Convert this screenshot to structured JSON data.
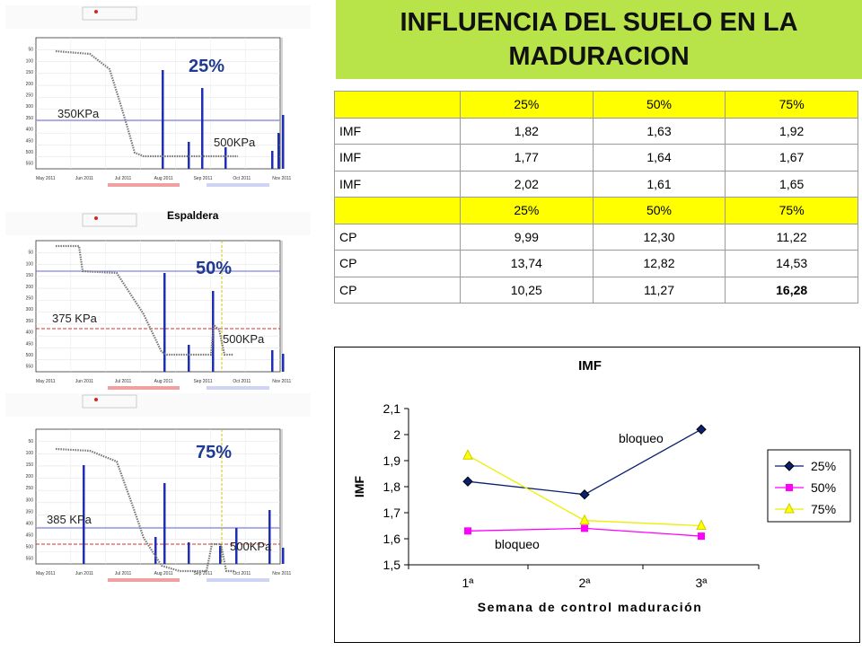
{
  "title": {
    "line1": "INFLUENCIA DEL SUELO EN LA",
    "line2": "MADURACION"
  },
  "table": {
    "header": [
      "",
      "25%",
      "50%",
      "75%"
    ],
    "imf_rows": [
      [
        "IMF",
        "1,82",
        "1,63",
        "1,92"
      ],
      [
        "IMF",
        "1,77",
        "1,64",
        "1,67"
      ],
      [
        "IMF",
        "2,02",
        "1,61",
        "1,65"
      ]
    ],
    "cp_rows": [
      [
        "CP",
        "9,99",
        "12,30",
        "11,22"
      ],
      [
        "CP",
        "13,74",
        "12,82",
        "14,53"
      ],
      [
        "CP",
        "10,25",
        "11,27",
        "16,28"
      ]
    ]
  },
  "panels": {
    "middle_caption": "Espaldera",
    "p1": {
      "pct": "25%",
      "left_label": "350KPa",
      "right_label": "500KPa"
    },
    "p2": {
      "pct": "50%",
      "left_label": "375 KPa",
      "right_label": "500KPa"
    },
    "p3": {
      "pct": "75%",
      "left_label": "385 KPa",
      "right_label": "500KPa"
    },
    "tick_labels": [
      "50",
      "100",
      "150",
      "200",
      "250",
      "300",
      "350",
      "400",
      "450",
      "500",
      "550"
    ],
    "month_labels": [
      "May 2011",
      "Jun 2011",
      "Jul 2011",
      "Aug 2011",
      "Sep 2011",
      "Oct 2011",
      "Nov 2011"
    ]
  },
  "chart_data": {
    "type": "line",
    "title": "IMF",
    "xlabel": "Semana de control maduración",
    "ylabel": "IMF",
    "categories": [
      "1ª",
      "2ª",
      "3ª"
    ],
    "ylim": [
      1.5,
      2.1
    ],
    "yticks": [
      "1,5",
      "1,6",
      "1,7",
      "1,8",
      "1,9",
      "2",
      "2,1"
    ],
    "legend_position": "right",
    "series": [
      {
        "name": "25%",
        "values": [
          1.82,
          1.77,
          2.02
        ],
        "color": "#0a1f6e",
        "marker": "diamond"
      },
      {
        "name": "50%",
        "values": [
          1.63,
          1.64,
          1.61
        ],
        "color": "#ff00ff",
        "marker": "square"
      },
      {
        "name": "75%",
        "values": [
          1.92,
          1.67,
          1.65
        ],
        "color": "#ffff00",
        "marker": "triangle"
      }
    ],
    "annotations": [
      "bloqueo",
      "bloqueo"
    ]
  }
}
